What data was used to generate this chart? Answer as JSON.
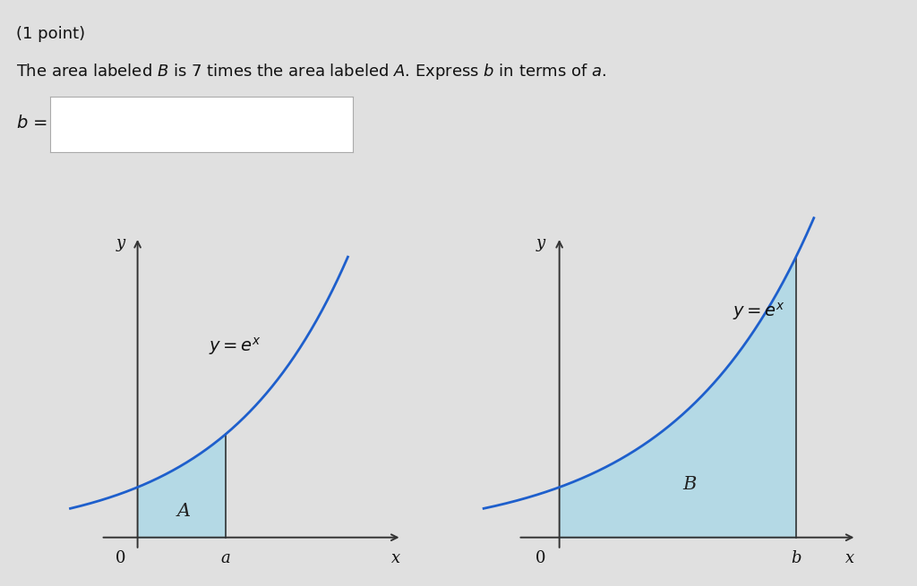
{
  "background_color": "#e0e0e0",
  "white_panel_bg": "#ffffff",
  "title_text": "(1 point)",
  "problem_text": "The area labeled $B$ is 7 times the area labeled $A$. Express $b$ in terms of $a$.",
  "label_b_eq": "b =",
  "fill_color": "#add8e6",
  "fill_alpha": 0.85,
  "curve_color": "#1e5fcc",
  "curve_linewidth": 2.0,
  "axis_color": "#333333",
  "label_A": "A",
  "label_B": "B",
  "font_size_title": 13,
  "font_size_problem": 13,
  "font_size_axis": 13,
  "font_size_eq": 14,
  "font_size_letter": 15,
  "a_val": 0.72,
  "b_val": 1.72,
  "x_curve_start": -0.55,
  "xlim_left": [
    -0.6,
    2.4
  ],
  "ylim_left": [
    -0.5,
    6.5
  ],
  "xlim_right": [
    -0.6,
    2.4
  ],
  "ylim_right": [
    -0.5,
    6.5
  ],
  "right_panel_fade_color": "#e8d5c8",
  "right_fade_x_start": 0.72,
  "right_fade_x_end": 1.0
}
